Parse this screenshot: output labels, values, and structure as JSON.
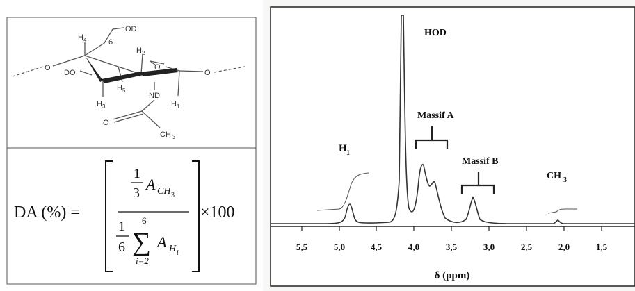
{
  "molecule": {
    "labels": {
      "od_top": "OD",
      "six": "6",
      "h4": "H",
      "h4_sub": "4",
      "h2": "H",
      "h2_sub": "2",
      "ring_o": "O",
      "left_o": "O",
      "right_o": "O",
      "do": "DO",
      "h5": "H",
      "h5_sub": "5",
      "nd": "ND",
      "h3": "H",
      "h3_sub": "3",
      "h1": "H",
      "h1_sub": "1",
      "carbonyl_o": "O",
      "ch3": "CH",
      "ch3_sub": "3"
    }
  },
  "formula": {
    "lhs": "DA (%) =",
    "one_a": "1",
    "three": "3",
    "a_symbol": "A",
    "ch3_sub": "CH",
    "ch3_subsub": "3",
    "one_b": "1",
    "six_num": "6",
    "sum_top": "6",
    "sigma": "∑",
    "sum_bottom": "i=2",
    "a_symbol_2": "A",
    "h_sub": "H",
    "i_subsub": "i",
    "times": "×100"
  },
  "spectrum": {
    "xlabel": "δ (ppm)",
    "xticks": [
      "5,5",
      "5,0",
      "4,5",
      "4,0",
      "3,5",
      "3,0",
      "2,5",
      "2,0",
      "1,5"
    ],
    "peaks": {
      "hod": "HOD",
      "massif_a": "Massif A",
      "massif_b": "Massif B",
      "h1": "H",
      "h1_sub": "1",
      "ch3": "CH",
      "ch3_sub": "3"
    }
  }
}
